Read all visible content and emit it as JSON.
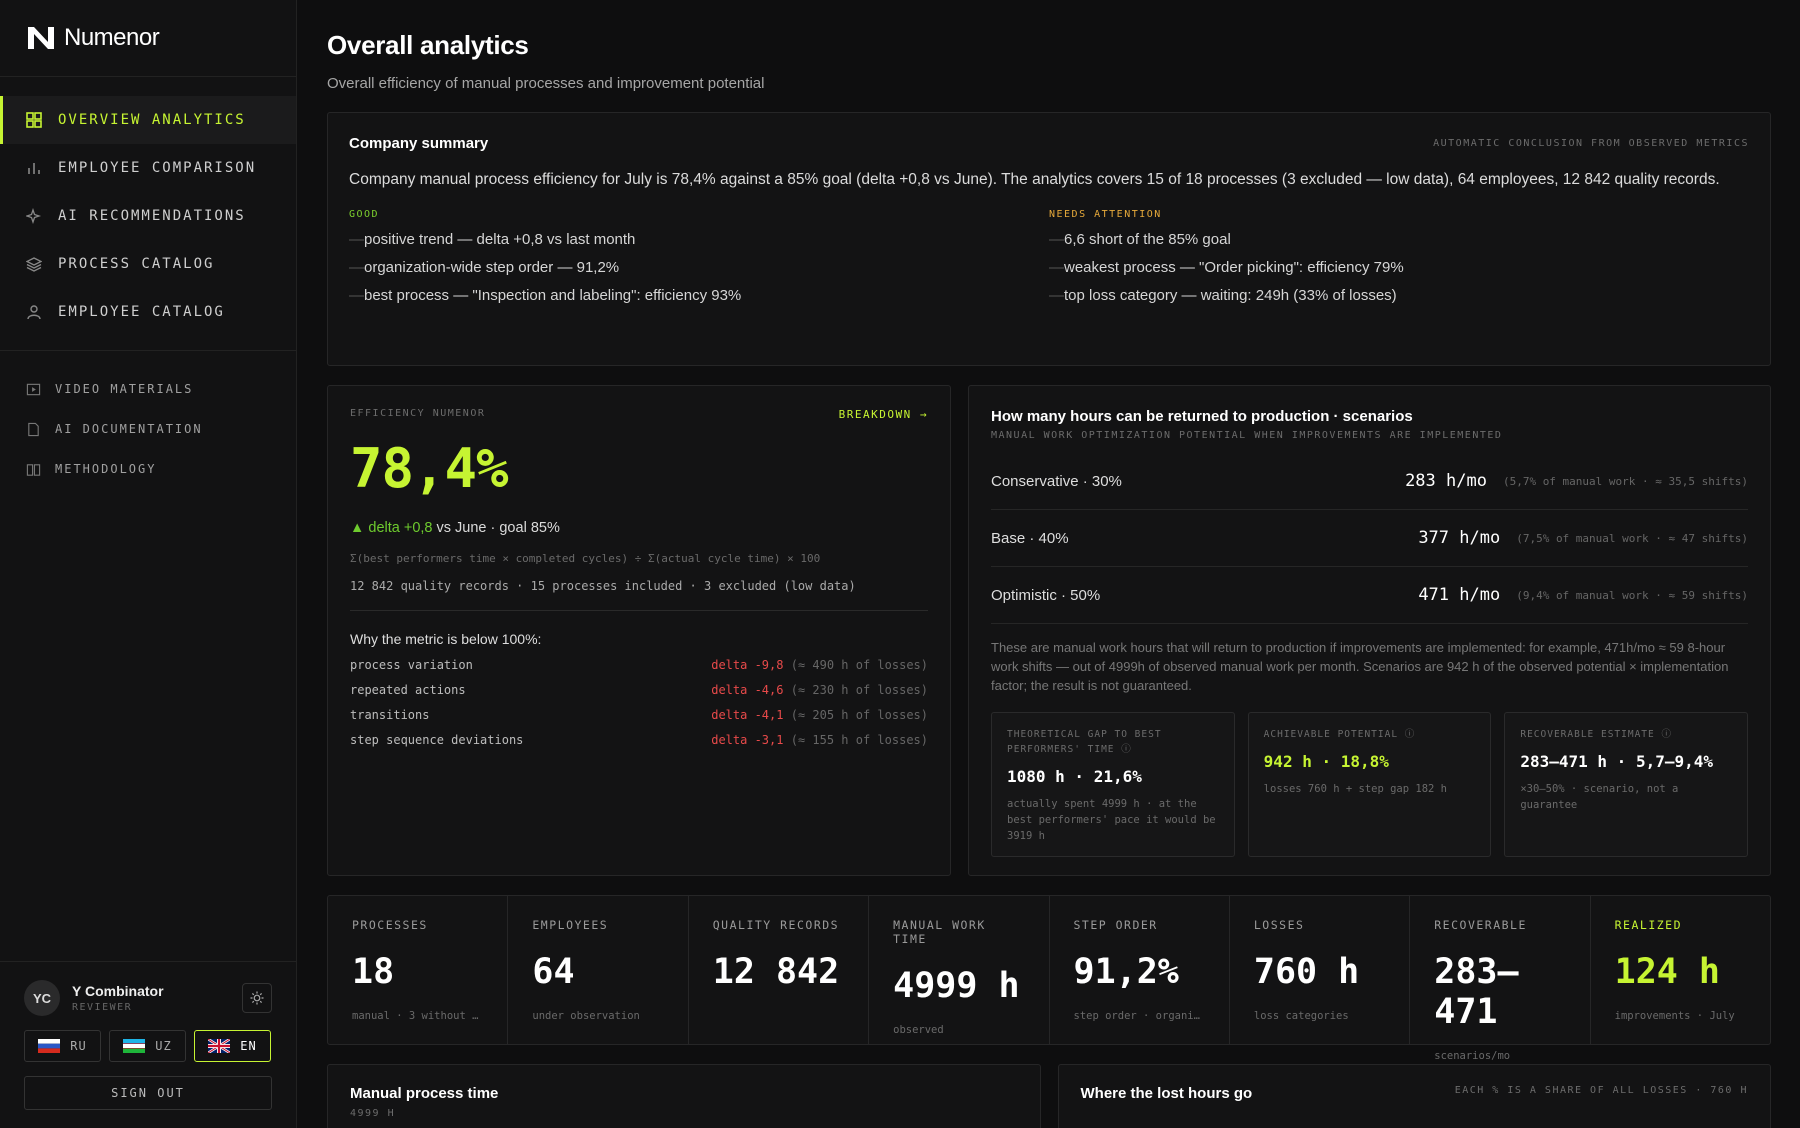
{
  "app": {
    "name": "Numenor"
  },
  "nav": {
    "main": [
      {
        "label": "OVERVIEW ANALYTICS",
        "icon": "grid-icon",
        "active": true
      },
      {
        "label": "EMPLOYEE COMPARISON",
        "icon": "bar-chart-icon"
      },
      {
        "label": "AI RECOMMENDATIONS",
        "icon": "sparkle-icon"
      },
      {
        "label": "PROCESS CATALOG",
        "icon": "layers-icon"
      },
      {
        "label": "EMPLOYEE CATALOG",
        "icon": "user-icon"
      }
    ],
    "secondary": [
      {
        "label": "VIDEO MATERIALS",
        "icon": "video-icon"
      },
      {
        "label": "AI DOCUMENTATION",
        "icon": "document-icon"
      },
      {
        "label": "METHODOLOGY",
        "icon": "book-icon"
      }
    ]
  },
  "user": {
    "initials": "YC",
    "name": "Y Combinator",
    "role": "REVIEWER"
  },
  "languages": [
    {
      "code": "RU",
      "active": false
    },
    {
      "code": "UZ",
      "active": false
    },
    {
      "code": "EN",
      "active": true
    }
  ],
  "sign_out": "SIGN OUT",
  "page": {
    "title": "Overall analytics",
    "subtitle": "Overall efficiency of manual processes and improvement potential"
  },
  "summary": {
    "title": "Company summary",
    "caption": "AUTOMATIC CONCLUSION FROM OBSERVED METRICS",
    "text": "Company manual process efficiency for July is 78,4% against a 85% goal (delta +0,8 vs June). The analytics covers 15 of 18 processes (3 excluded — low data), 64 employees, 12 842 quality records.",
    "good_label": "GOOD",
    "good": [
      "positive trend — delta +0,8 vs last month",
      "organization-wide step order — 91,2%",
      "best process — \"Inspection and labeling\": efficiency 93%"
    ],
    "attention_label": "NEEDS ATTENTION",
    "attention": [
      "6,6 short of the 85% goal",
      "weakest process — \"Order picking\": efficiency 79%",
      "top loss category — waiting: 249h (33% of losses)"
    ]
  },
  "efficiency": {
    "label": "EFFICIENCY NUMENOR",
    "breakdown": "BREAKDOWN →",
    "value": "78,4%",
    "delta": "▲ delta +0,8",
    "delta_rest": " vs June · goal 85%",
    "formula": "Σ(best performers time × completed cycles) ÷ Σ(actual cycle time) × 100",
    "records": "12 842 quality records · 15 processes included · 3 excluded (low data)",
    "why_title": "Why the metric is below 100%:",
    "losses": [
      {
        "name": "process variation",
        "delta": "delta -9,8",
        "hours": "(≈ 490 h of losses)"
      },
      {
        "name": "repeated actions",
        "delta": "delta -4,6",
        "hours": "(≈ 230 h of losses)"
      },
      {
        "name": "transitions",
        "delta": "delta -4,1",
        "hours": "(≈ 205 h of losses)"
      },
      {
        "name": "step sequence deviations",
        "delta": "delta -3,1",
        "hours": "(≈ 155 h of losses)"
      }
    ]
  },
  "scenarios": {
    "title": "How many hours can be returned to production · scenarios",
    "caption": "MANUAL WORK OPTIMIZATION POTENTIAL WHEN IMPROVEMENTS ARE IMPLEMENTED",
    "rows": [
      {
        "name": "Conservative · 30%",
        "value": "283 h/mo",
        "note": "(5,7% of manual work · ≈ 35,5 shifts)"
      },
      {
        "name": "Base · 40%",
        "value": "377 h/mo",
        "note": "(7,5% of manual work · ≈ 47 shifts)"
      },
      {
        "name": "Optimistic · 50%",
        "value": "471 h/mo",
        "note": "(9,4% of manual work · ≈ 59 shifts)"
      }
    ],
    "description": "These are manual work hours that will return to production if improvements are implemented: for example, 471h/mo ≈ 59 8-hour work shifts — out of 4999h of observed manual work per month. Scenarios are 942 h of the observed potential × implementation factor; the result is not guaranteed.",
    "cards": [
      {
        "label": "THEORETICAL GAP TO BEST PERFORMERS' TIME ⓘ",
        "value": "1080 h · 21,6%",
        "note": "actually spent 4999 h · at the best performers' pace it would be 3919 h",
        "lime": false
      },
      {
        "label": "ACHIEVABLE POTENTIAL ⓘ",
        "value": "942 h · 18,8%",
        "note": "losses 760 h + step gap 182 h",
        "lime": true
      },
      {
        "label": "RECOVERABLE ESTIMATE ⓘ",
        "value": "283–471 h · 5,7–9,4%",
        "note": "×30–50% · scenario, not a guarantee",
        "lime": false
      }
    ]
  },
  "kpis": [
    {
      "label": "PROCESSES",
      "value": "18",
      "note": "manual · 3 without …",
      "lime": false
    },
    {
      "label": "EMPLOYEES",
      "value": "64",
      "note": "under observation",
      "lime": false
    },
    {
      "label": "QUALITY RECORDS",
      "value": "12 842",
      "note": "",
      "lime": false
    },
    {
      "label": "MANUAL WORK TIME",
      "value": "4999 h",
      "note": "observed",
      "lime": false
    },
    {
      "label": "STEP ORDER",
      "value": "91,2%",
      "note": "step order · organi…",
      "lime": false
    },
    {
      "label": "LOSSES",
      "value": "760 h",
      "note": "loss categories",
      "lime": false
    },
    {
      "label": "RECOVERABLE",
      "value": "283–471",
      "note": "scenarios/mo",
      "lime": false
    },
    {
      "label": "REALIZED",
      "value": "124 h",
      "note": "improvements · July",
      "lime": true
    }
  ],
  "bottom": {
    "left_title": "Manual process time",
    "left_sub": "4999 H",
    "right_title": "Where the lost hours go",
    "right_caption": "EACH % IS A SHARE OF ALL LOSSES · 760 H"
  }
}
